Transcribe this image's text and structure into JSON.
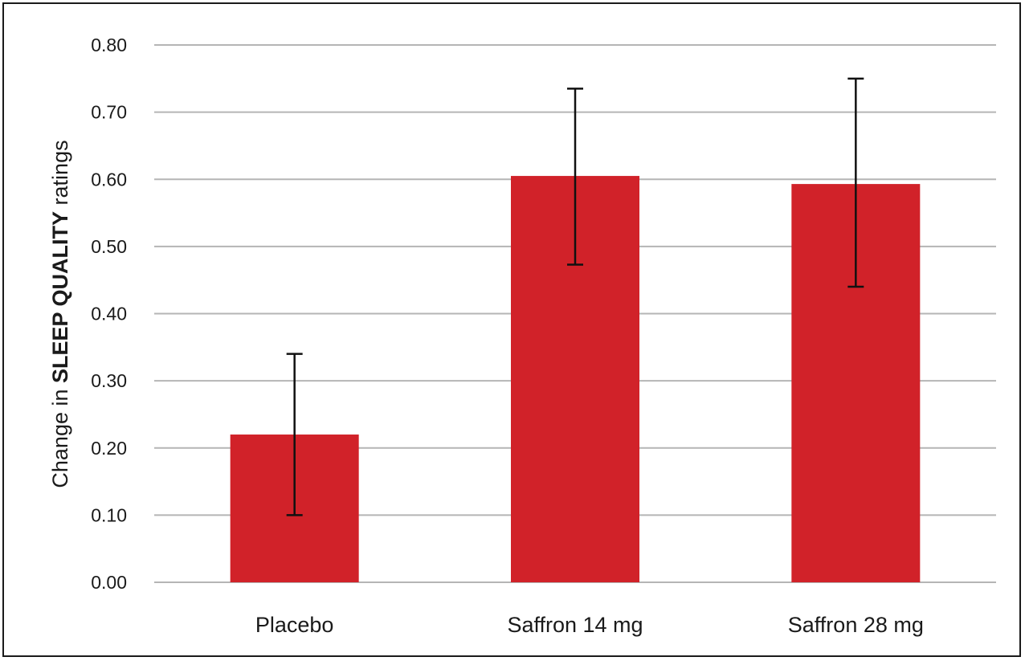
{
  "chart_data": {
    "type": "bar",
    "categories": [
      "Placebo",
      "Saffron 14 mg",
      "Saffron 28 mg"
    ],
    "values": [
      0.22,
      0.605,
      0.593
    ],
    "error_bars": {
      "lower": [
        0.1,
        0.473,
        0.44
      ],
      "upper": [
        0.34,
        0.735,
        0.75
      ]
    },
    "ylabel": {
      "prefix": "Change in ",
      "emphasis": "SLEEP QUALITY",
      "suffix": " ratings"
    },
    "xlabel": "",
    "ylim": [
      0,
      0.8
    ],
    "yticks": [
      "0.00",
      "0.10",
      "0.20",
      "0.30",
      "0.40",
      "0.50",
      "0.60",
      "0.70",
      "0.80"
    ],
    "grid": true,
    "bar_color": "#d12229",
    "error_color": "#111111"
  }
}
